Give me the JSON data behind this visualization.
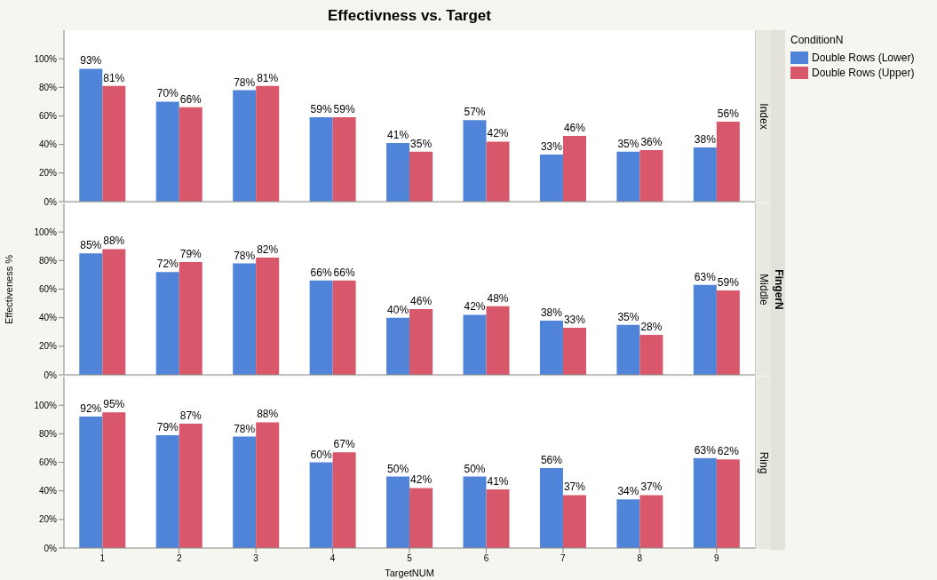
{
  "chart_data": [
    {
      "type": "bar",
      "title": "Effectivness vs. Target",
      "legend_title": "ConditionN",
      "legend": "right",
      "tick_labels": "y",
      "annotations": [
        "Index"
      ],
      "categories": [
        "1",
        "2",
        "3",
        "4",
        "5",
        "6",
        "7",
        "8",
        "9"
      ],
      "ylim": [
        0,
        120
      ],
      "yticks": [
        {
          "value": 0,
          "label": "0%"
        },
        {
          "value": 20,
          "label": "20%"
        },
        {
          "value": 40,
          "label": "40%"
        },
        {
          "value": 60,
          "label": "60%"
        },
        {
          "value": 80,
          "label": "80%"
        },
        {
          "value": 100,
          "label": "100%"
        }
      ],
      "series": [
        {
          "name": "Double Rows (Lower)",
          "color": "#4f84d9",
          "values": [
            93,
            70,
            78,
            59,
            41,
            57,
            33,
            35,
            38
          ],
          "value_labels": [
            "93%",
            "70%",
            "78%",
            "59%",
            "41%",
            "57%",
            "33%",
            "35%",
            "38%"
          ]
        },
        {
          "name": "Double Rows (Upper)",
          "color": "#d9576a",
          "values": [
            81,
            66,
            81,
            59,
            35,
            42,
            46,
            36,
            56
          ],
          "value_labels": [
            "81%",
            "66%",
            "81%",
            "59%",
            "35%",
            "42%",
            "46%",
            "36%",
            "56%"
          ]
        }
      ]
    },
    {
      "type": "bar",
      "ylabel": "Effectiveness %",
      "tick_labels": "y",
      "annotations": [
        "Middle",
        "FingerN"
      ],
      "categories": [
        "1",
        "2",
        "3",
        "4",
        "5",
        "6",
        "7",
        "8",
        "9"
      ],
      "ylim": [
        0,
        120
      ],
      "yticks": [
        {
          "value": 0,
          "label": "0%"
        },
        {
          "value": 20,
          "label": "20%"
        },
        {
          "value": 40,
          "label": "40%"
        },
        {
          "value": 60,
          "label": "60%"
        },
        {
          "value": 80,
          "label": "80%"
        },
        {
          "value": 100,
          "label": "100%"
        }
      ],
      "series": [
        {
          "color": "#4f84d9",
          "values": [
            85,
            72,
            78,
            66,
            40,
            42,
            38,
            35,
            63
          ],
          "value_labels": [
            "85%",
            "72%",
            "78%",
            "66%",
            "40%",
            "42%",
            "38%",
            "35%",
            "63%"
          ]
        },
        {
          "color": "#d9576a",
          "values": [
            88,
            79,
            82,
            66,
            46,
            48,
            33,
            28,
            59
          ],
          "value_labels": [
            "88%",
            "79%",
            "82%",
            "66%",
            "46%",
            "48%",
            "33%",
            "28%",
            "59%"
          ]
        }
      ]
    },
    {
      "type": "bar",
      "xlabel": "TargetNUM",
      "annotations": [
        "Ring"
      ],
      "categories": [
        "1",
        "2",
        "3",
        "4",
        "5",
        "6",
        "7",
        "8",
        "9"
      ],
      "ylim": [
        0,
        120
      ],
      "yticks": [
        {
          "value": 0,
          "label": "0%"
        },
        {
          "value": 20,
          "label": "20%"
        },
        {
          "value": 40,
          "label": "40%"
        },
        {
          "value": 60,
          "label": "60%"
        },
        {
          "value": 80,
          "label": "80%"
        },
        {
          "value": 100,
          "label": "100%"
        }
      ],
      "series": [
        {
          "color": "#4f84d9",
          "values": [
            92,
            79,
            78,
            60,
            50,
            50,
            56,
            34,
            63
          ],
          "value_labels": [
            "92%",
            "79%",
            "78%",
            "60%",
            "50%",
            "50%",
            "56%",
            "34%",
            "63%"
          ]
        },
        {
          "color": "#d9576a",
          "values": [
            95,
            87,
            88,
            67,
            42,
            41,
            37,
            37,
            62
          ],
          "value_labels": [
            "95%",
            "87%",
            "88%",
            "67%",
            "42%",
            "41%",
            "37%",
            "37%",
            "62%"
          ]
        }
      ]
    }
  ]
}
